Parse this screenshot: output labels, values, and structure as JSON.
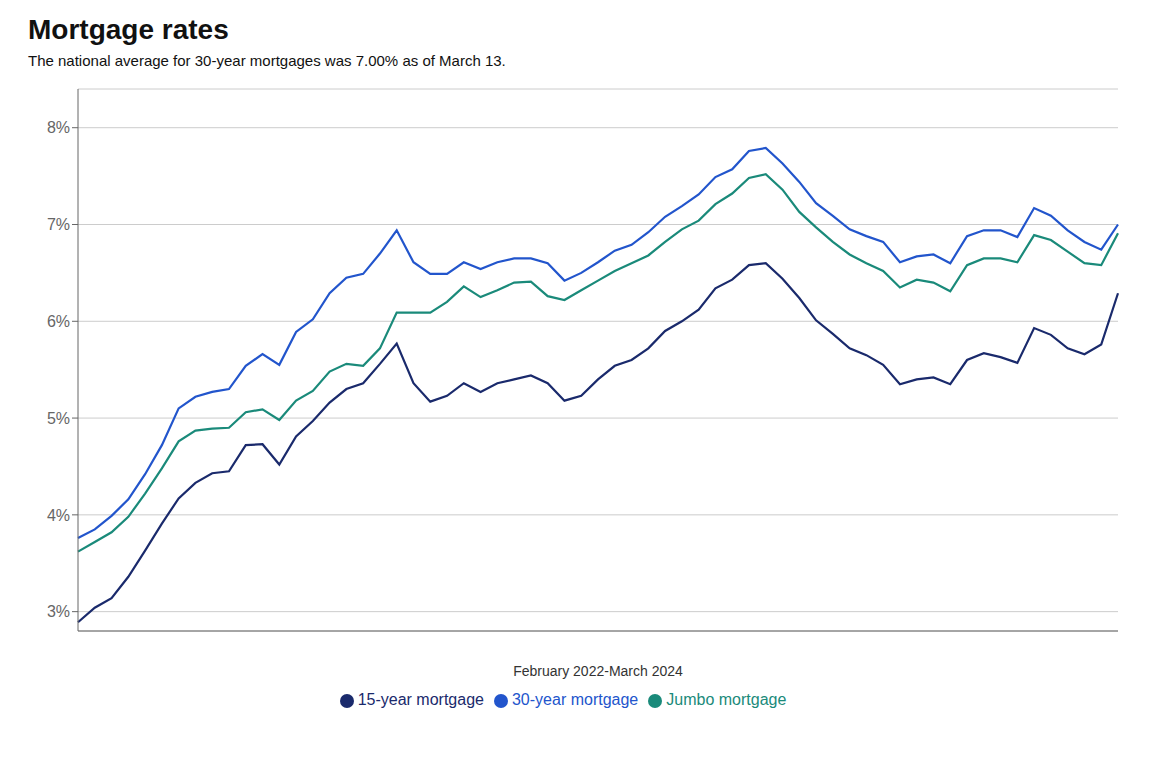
{
  "chart_data": {
    "type": "line",
    "title": "Mortgage rates",
    "subtitle": "The national average for 30-year mortgages was 7.00% as of March 13.",
    "xlabel": "February 2022-March 2024",
    "ylim": [
      2.8,
      8.4
    ],
    "yticks": [
      {
        "value": 3,
        "label": "3%"
      },
      {
        "value": 4,
        "label": "4%"
      },
      {
        "value": 5,
        "label": "5%"
      },
      {
        "value": 6,
        "label": "6%"
      },
      {
        "value": 7,
        "label": "7%"
      },
      {
        "value": 8,
        "label": "8%"
      }
    ],
    "grid": true,
    "legend": "bottom",
    "tick_labels": "y",
    "series": [
      {
        "name": "30-year mortgage",
        "color": "#2255CC",
        "values": [
          3.76,
          3.85,
          3.99,
          4.16,
          4.42,
          4.72,
          5.1,
          5.22,
          5.27,
          5.3,
          5.54,
          5.66,
          5.55,
          5.89,
          6.02,
          6.29,
          6.45,
          6.49,
          6.7,
          6.94,
          6.61,
          6.49,
          6.49,
          6.61,
          6.54,
          6.61,
          6.65,
          6.65,
          6.6,
          6.42,
          6.5,
          6.61,
          6.73,
          6.79,
          6.92,
          7.08,
          7.19,
          7.31,
          7.49,
          7.57,
          7.76,
          7.79,
          7.63,
          7.44,
          7.22,
          7.09,
          6.95,
          6.88,
          6.82,
          6.61,
          6.67,
          6.69,
          6.6,
          6.88,
          6.94,
          6.94,
          6.87,
          7.17,
          7.09,
          6.94,
          6.82,
          6.74,
          7.0
        ]
      },
      {
        "name": "15-year mortgage",
        "color": "#1a2a6c",
        "values": [
          2.89,
          3.04,
          3.14,
          3.36,
          3.63,
          3.91,
          4.17,
          4.33,
          4.43,
          4.45,
          4.72,
          4.73,
          4.52,
          4.81,
          4.97,
          5.16,
          5.3,
          5.36,
          5.56,
          5.77,
          5.36,
          5.17,
          5.23,
          5.36,
          5.27,
          5.36,
          5.4,
          5.44,
          5.36,
          5.18,
          5.23,
          5.4,
          5.54,
          5.6,
          5.72,
          5.9,
          6.0,
          6.12,
          6.34,
          6.43,
          6.58,
          6.6,
          6.44,
          6.24,
          6.01,
          5.87,
          5.72,
          5.65,
          5.55,
          5.35,
          5.4,
          5.42,
          5.35,
          5.6,
          5.67,
          5.63,
          5.57,
          5.93,
          5.86,
          5.72,
          5.66,
          5.76,
          6.29
        ]
      },
      {
        "name": "Jumbo mortgage",
        "color": "#1a8a7a",
        "values": [
          3.62,
          3.72,
          3.82,
          3.98,
          4.22,
          4.48,
          4.76,
          4.87,
          4.89,
          4.9,
          5.06,
          5.09,
          4.98,
          5.18,
          5.28,
          5.48,
          5.56,
          5.54,
          5.72,
          6.09,
          6.09,
          6.09,
          6.2,
          6.36,
          6.25,
          6.32,
          6.4,
          6.41,
          6.26,
          6.22,
          6.32,
          6.42,
          6.52,
          6.6,
          6.68,
          6.82,
          6.95,
          7.04,
          7.21,
          7.32,
          7.48,
          7.52,
          7.36,
          7.13,
          6.97,
          6.82,
          6.69,
          6.6,
          6.52,
          6.35,
          6.43,
          6.4,
          6.31,
          6.58,
          6.65,
          6.65,
          6.61,
          6.89,
          6.84,
          6.72,
          6.6,
          6.58,
          6.91
        ]
      }
    ]
  }
}
